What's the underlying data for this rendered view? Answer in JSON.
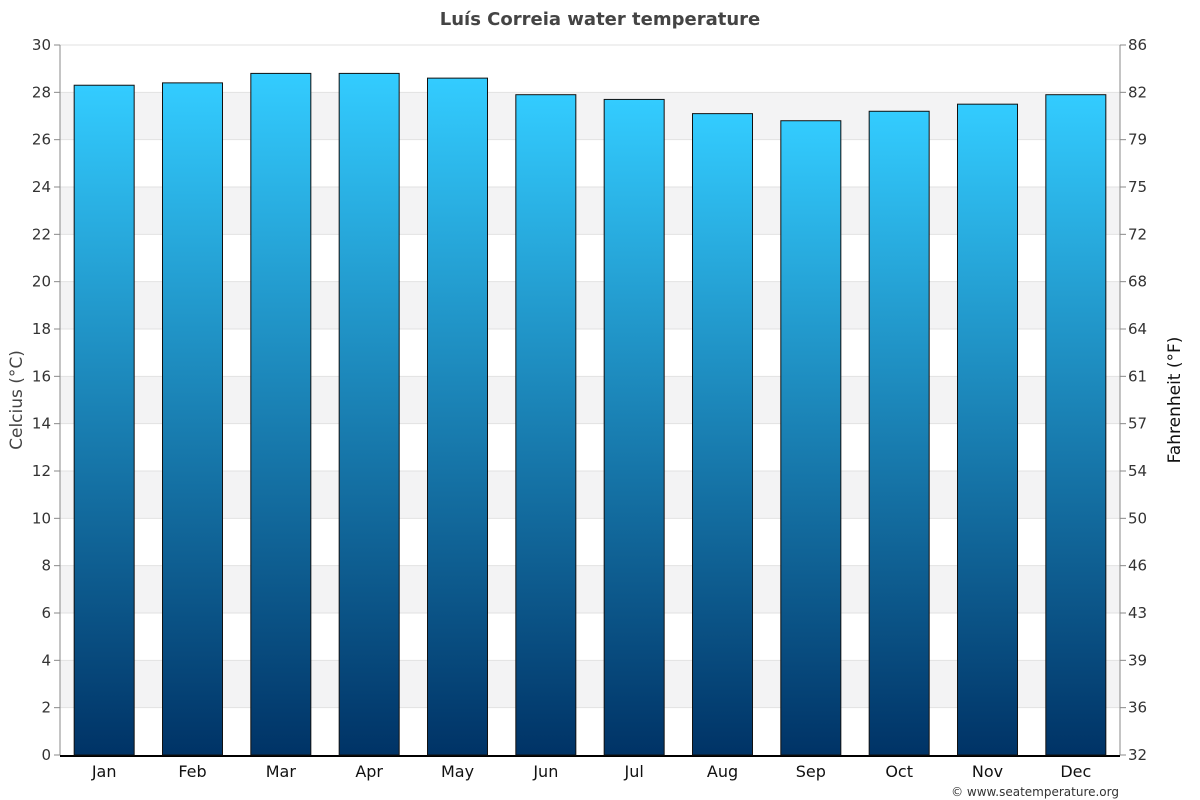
{
  "chart_data": {
    "type": "bar",
    "title": "Luís Correia water temperature",
    "categories": [
      "Jan",
      "Feb",
      "Mar",
      "Apr",
      "May",
      "Jun",
      "Jul",
      "Aug",
      "Sep",
      "Oct",
      "Nov",
      "Dec"
    ],
    "values": [
      28.3,
      28.4,
      28.8,
      28.8,
      28.6,
      27.9,
      27.7,
      27.1,
      26.8,
      27.2,
      27.5,
      27.9
    ],
    "ylabel": "Celcius (°C)",
    "ylabel_right": "Fahrenheit (°F)",
    "ylim": [
      0,
      30
    ],
    "yticks": [
      "0",
      "2",
      "4",
      "6",
      "8",
      "10",
      "12",
      "14",
      "16",
      "18",
      "20",
      "22",
      "24",
      "26",
      "28",
      "30"
    ],
    "yticks_right": [
      "32",
      "36",
      "39",
      "43",
      "46",
      "50",
      "54",
      "57",
      "61",
      "64",
      "68",
      "72",
      "75",
      "79",
      "82",
      "86"
    ],
    "grid": true,
    "bar_color_top": "#33ccff",
    "bar_color_bottom": "#003366",
    "band_color": "#f3f3f4"
  },
  "credit": "© www.seatemperature.org"
}
